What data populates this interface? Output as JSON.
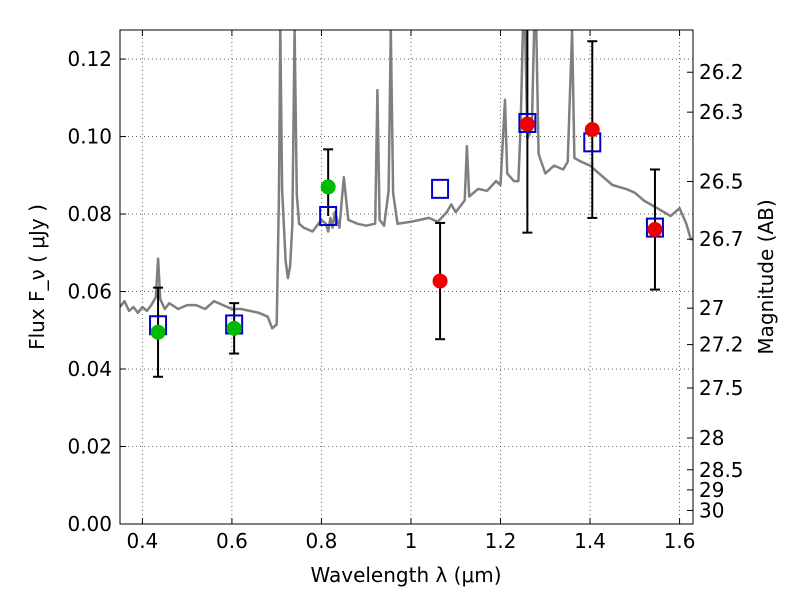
{
  "chart_data": {
    "type": "scatter",
    "xlabel": "Wavelength  λ (μm)",
    "ylabel": "Flux  F_ν  ( μJy )",
    "ylabel_right": "Magnitude (AB)",
    "xlim": [
      0.35,
      1.63
    ],
    "ylim": [
      0.0,
      0.1275
    ],
    "grid": true,
    "x_ticks": [
      0.4,
      0.6,
      0.8,
      1.0,
      1.2,
      1.4,
      1.6
    ],
    "x_tick_labels": [
      "0.4",
      "0.6",
      "0.8",
      "1",
      "1.2",
      "1.4",
      "1.6"
    ],
    "y_ticks": [
      0.0,
      0.02,
      0.04,
      0.06,
      0.08,
      0.1,
      0.12
    ],
    "y_tick_labels": [
      "0.00",
      "0.02",
      "0.04",
      "0.06",
      "0.08",
      "0.10",
      "0.12"
    ],
    "right_ticks": [
      {
        "label": "26.2",
        "flux": 0.1166
      },
      {
        "label": "26.3",
        "flux": 0.1063
      },
      {
        "label": "26.5",
        "flux": 0.0884
      },
      {
        "label": "26.7",
        "flux": 0.0735
      },
      {
        "label": "27",
        "flux": 0.0557
      },
      {
        "label": "27.2",
        "flux": 0.0463
      },
      {
        "label": "27.5",
        "flux": 0.0351
      },
      {
        "label": "28",
        "flux": 0.0222
      },
      {
        "label": "28.5",
        "flux": 0.014
      },
      {
        "label": "29",
        "flux": 0.0088
      },
      {
        "label": "30",
        "flux": 0.0035
      }
    ],
    "series": [
      {
        "kind": "model-spectrum",
        "color": "#7f7f7f",
        "points": [
          [
            0.35,
            0.056
          ],
          [
            0.36,
            0.0575
          ],
          [
            0.37,
            0.055
          ],
          [
            0.38,
            0.056
          ],
          [
            0.39,
            0.0545
          ],
          [
            0.4,
            0.056
          ],
          [
            0.41,
            0.055
          ],
          [
            0.42,
            0.0565
          ],
          [
            0.43,
            0.0585
          ],
          [
            0.435,
            0.0685
          ],
          [
            0.44,
            0.058
          ],
          [
            0.45,
            0.0555
          ],
          [
            0.46,
            0.057
          ],
          [
            0.48,
            0.0555
          ],
          [
            0.5,
            0.0565
          ],
          [
            0.52,
            0.0565
          ],
          [
            0.54,
            0.0555
          ],
          [
            0.56,
            0.0575
          ],
          [
            0.58,
            0.0565
          ],
          [
            0.6,
            0.0555
          ],
          [
            0.62,
            0.0555
          ],
          [
            0.64,
            0.055
          ],
          [
            0.66,
            0.0545
          ],
          [
            0.68,
            0.0535
          ],
          [
            0.69,
            0.0505
          ],
          [
            0.7,
            0.0515
          ],
          [
            0.705,
            0.084
          ],
          [
            0.708,
            0.1275
          ],
          [
            0.712,
            0.0865
          ],
          [
            0.72,
            0.068
          ],
          [
            0.725,
            0.0635
          ],
          [
            0.73,
            0.0665
          ],
          [
            0.735,
            0.077
          ],
          [
            0.74,
            0.1275
          ],
          [
            0.745,
            0.085
          ],
          [
            0.75,
            0.0775
          ],
          [
            0.76,
            0.0765
          ],
          [
            0.78,
            0.0755
          ],
          [
            0.8,
            0.0785
          ],
          [
            0.81,
            0.0775
          ],
          [
            0.815,
            0.0755
          ],
          [
            0.82,
            0.079
          ],
          [
            0.825,
            0.0765
          ],
          [
            0.83,
            0.0805
          ],
          [
            0.84,
            0.0765
          ],
          [
            0.85,
            0.0895
          ],
          [
            0.86,
            0.0785
          ],
          [
            0.88,
            0.0775
          ],
          [
            0.9,
            0.077
          ],
          [
            0.92,
            0.0775
          ],
          [
            0.925,
            0.112
          ],
          [
            0.93,
            0.0785
          ],
          [
            0.94,
            0.077
          ],
          [
            0.95,
            0.086
          ],
          [
            0.955,
            0.1275
          ],
          [
            0.96,
            0.0855
          ],
          [
            0.97,
            0.0775
          ],
          [
            1.0,
            0.078
          ],
          [
            1.02,
            0.0785
          ],
          [
            1.04,
            0.079
          ],
          [
            1.06,
            0.078
          ],
          [
            1.08,
            0.0805
          ],
          [
            1.09,
            0.0825
          ],
          [
            1.1,
            0.0805
          ],
          [
            1.12,
            0.0835
          ],
          [
            1.125,
            0.0975
          ],
          [
            1.13,
            0.0845
          ],
          [
            1.15,
            0.0865
          ],
          [
            1.17,
            0.086
          ],
          [
            1.19,
            0.0885
          ],
          [
            1.2,
            0.0875
          ],
          [
            1.21,
            0.1095
          ],
          [
            1.215,
            0.0905
          ],
          [
            1.23,
            0.0885
          ],
          [
            1.24,
            0.0885
          ],
          [
            1.245,
            0.1035
          ],
          [
            1.25,
            0.1275
          ],
          [
            1.255,
            0.1275
          ],
          [
            1.26,
            0.0995
          ],
          [
            1.27,
            0.102
          ],
          [
            1.275,
            0.1275
          ],
          [
            1.28,
            0.1275
          ],
          [
            1.285,
            0.0955
          ],
          [
            1.3,
            0.0905
          ],
          [
            1.32,
            0.0925
          ],
          [
            1.34,
            0.0915
          ],
          [
            1.35,
            0.0935
          ],
          [
            1.36,
            0.1275
          ],
          [
            1.365,
            0.0945
          ],
          [
            1.38,
            0.0935
          ],
          [
            1.4,
            0.0925
          ],
          [
            1.42,
            0.0905
          ],
          [
            1.45,
            0.0875
          ],
          [
            1.48,
            0.0865
          ],
          [
            1.5,
            0.0855
          ],
          [
            1.52,
            0.0835
          ],
          [
            1.55,
            0.0815
          ],
          [
            1.58,
            0.0795
          ],
          [
            1.6,
            0.0815
          ],
          [
            1.615,
            0.0775
          ],
          [
            1.625,
            0.0735
          ],
          [
            1.63,
            0.0735
          ]
        ]
      },
      {
        "kind": "model-photometry",
        "marker": "open-square",
        "color": "#0000cc",
        "points": [
          [
            0.435,
            0.0513
          ],
          [
            0.605,
            0.0515
          ],
          [
            0.815,
            0.0795
          ],
          [
            1.065,
            0.0865
          ],
          [
            1.26,
            0.1035
          ],
          [
            1.405,
            0.0985
          ],
          [
            1.545,
            0.0765
          ]
        ]
      },
      {
        "kind": "detections",
        "marker": "filled-circle",
        "color": "#00bb00",
        "points": [
          {
            "x": 0.435,
            "y": 0.0495,
            "err": 0.0115
          },
          {
            "x": 0.605,
            "y": 0.0505,
            "err": 0.0065
          },
          {
            "x": 0.815,
            "y": 0.087,
            "err": 0.0
          }
        ]
      },
      {
        "kind": "detections",
        "marker": "filled-circle",
        "color": "#ee0000",
        "points": [
          {
            "x": 1.065,
            "y": 0.0627,
            "err": 0.015
          },
          {
            "x": 1.26,
            "y": 0.1032,
            "err": 0.028
          },
          {
            "x": 1.405,
            "y": 0.1018,
            "err": 0.0228
          },
          {
            "x": 1.545,
            "y": 0.076,
            "err": 0.0155
          }
        ]
      },
      {
        "kind": "errorbar-only",
        "color": "#000000",
        "points": [
          {
            "x": 0.815,
            "y": 0.087,
            "lo": 0.0795,
            "hi": 0.0967
          }
        ]
      }
    ]
  }
}
